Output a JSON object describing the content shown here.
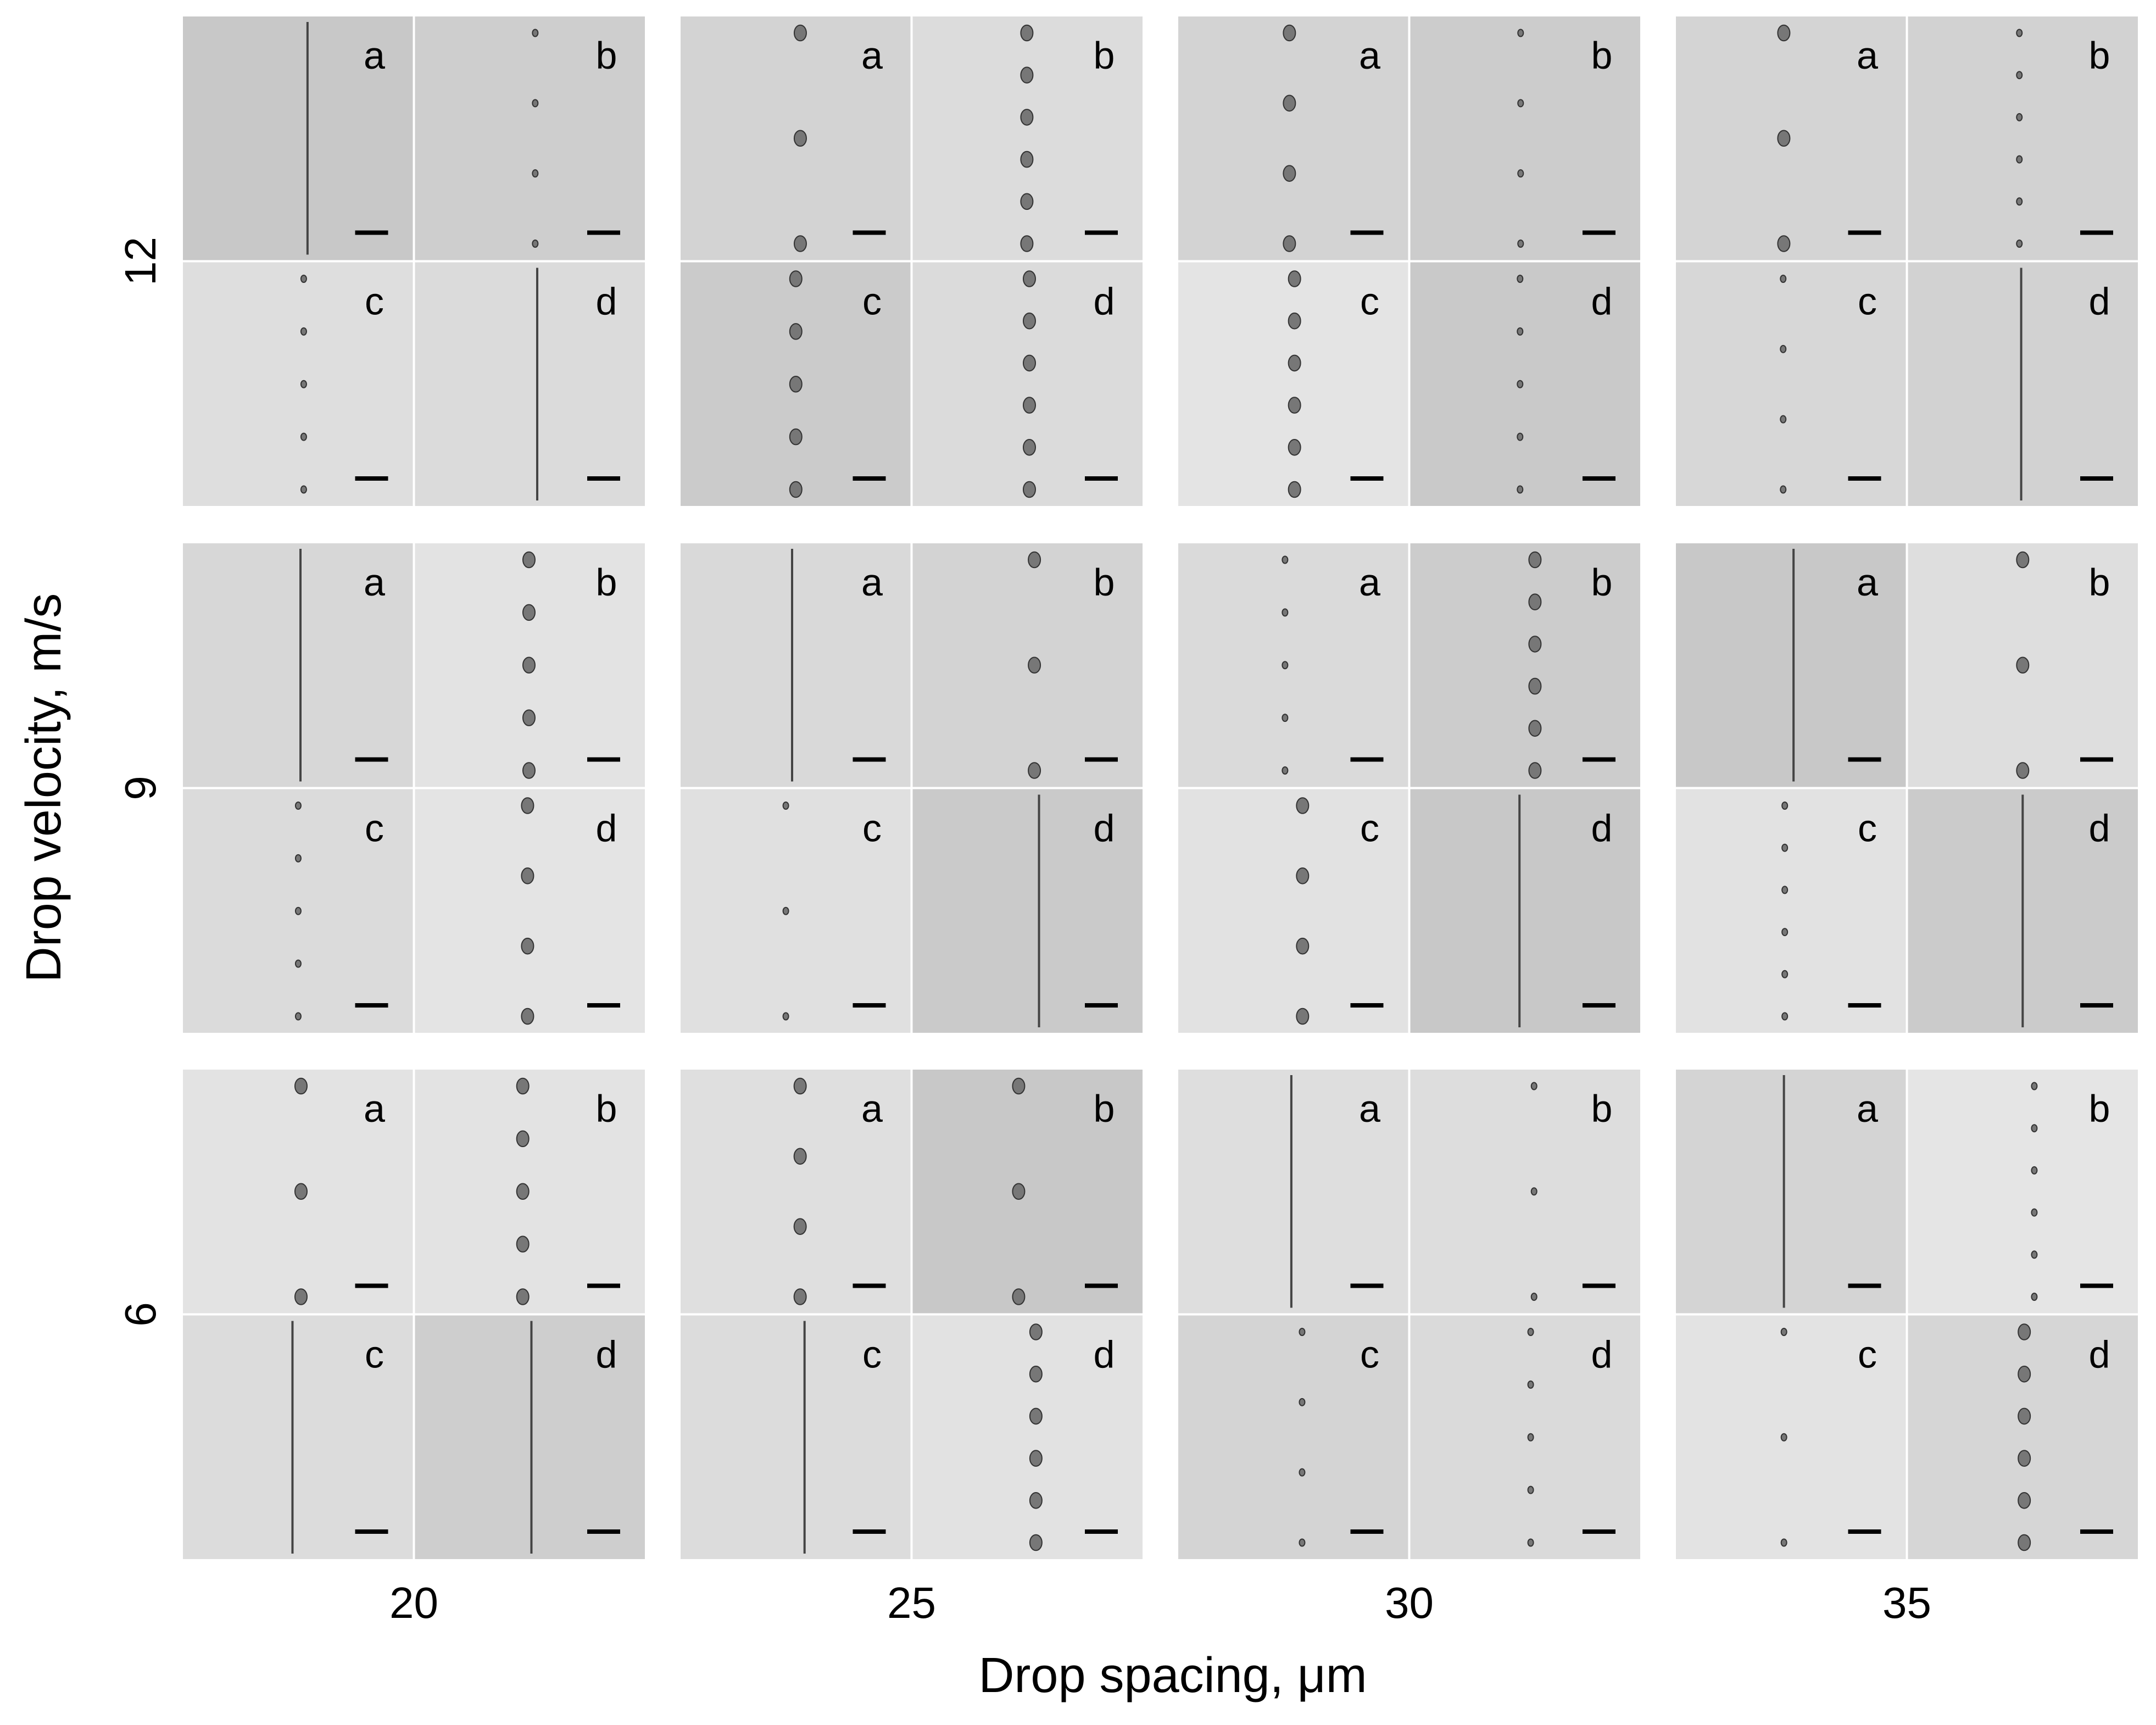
{
  "row_labels": [
    "12",
    "9",
    "6"
  ],
  "column_labels": [
    "20",
    "25",
    "30",
    "35"
  ],
  "panel_labels": [
    "a",
    "b",
    "c",
    "d"
  ],
  "y_axis_label": "Drop velocity, m/s",
  "x_axis_label": "Drop spacing, μm"
}
